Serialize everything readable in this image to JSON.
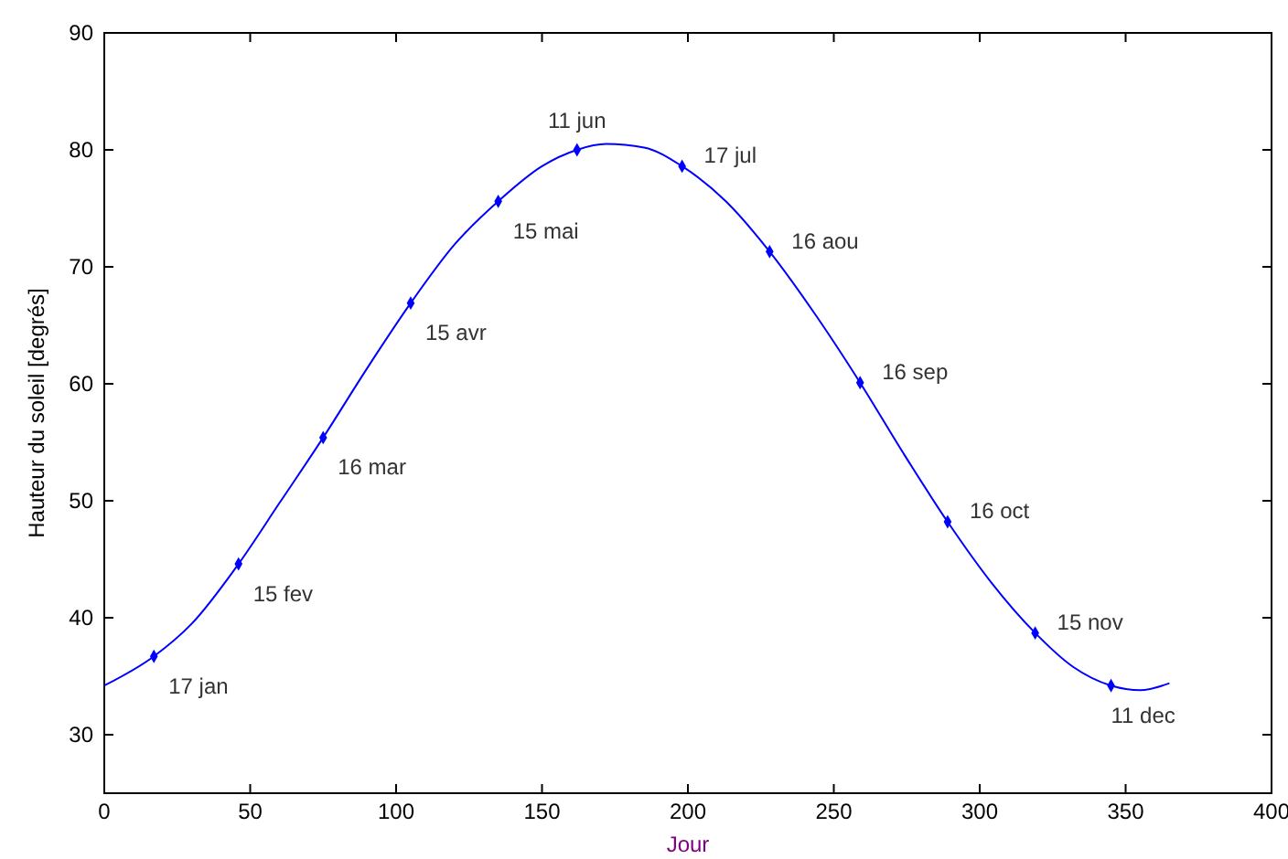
{
  "chart_data": {
    "type": "line",
    "xlabel": "Jour",
    "ylabel": "Hauteur du soleil [degrés]",
    "xlim": [
      0,
      400
    ],
    "ylim": [
      25,
      90
    ],
    "xticks": [
      0,
      50,
      100,
      150,
      200,
      250,
      300,
      350,
      400
    ],
    "yticks": [
      30,
      40,
      50,
      60,
      70,
      80,
      90
    ],
    "grid": false,
    "series": [
      {
        "color": "#0000ff",
        "marker": "none",
        "x": [
          0,
          17,
          30,
          46,
          60,
          75,
          90,
          105,
          120,
          135,
          150,
          162,
          172,
          185,
          198,
          213,
          228,
          244,
          259,
          274,
          289,
          304,
          319,
          332,
          345,
          355,
          365
        ],
        "values": [
          34.2,
          36.7,
          39.5,
          44.6,
          49.8,
          55.4,
          61.3,
          66.9,
          71.9,
          75.6,
          78.6,
          80.0,
          80.5,
          80.2,
          78.6,
          75.6,
          71.3,
          65.8,
          60.1,
          54.0,
          48.2,
          43.0,
          38.7,
          35.8,
          34.2,
          33.8,
          34.4
        ]
      },
      {
        "type": "scatter",
        "color": "#0000ff",
        "marker": "diamond",
        "x": [
          17,
          46,
          75,
          105,
          135,
          162,
          198,
          228,
          259,
          289,
          319,
          345
        ],
        "values": [
          36.7,
          44.6,
          55.4,
          66.9,
          75.6,
          80.0,
          78.6,
          71.3,
          60.1,
          48.2,
          38.7,
          34.2
        ]
      }
    ],
    "annotations": [
      {
        "text": "17 jan",
        "x": 17,
        "y": 36.7
      },
      {
        "text": "15 fev",
        "x": 46,
        "y": 44.6
      },
      {
        "text": "16 mar",
        "x": 75,
        "y": 55.4
      },
      {
        "text": "15 avr",
        "x": 105,
        "y": 66.9
      },
      {
        "text": "15 mai",
        "x": 135,
        "y": 75.6
      },
      {
        "text": "11 jun",
        "x": 162,
        "y": 80.0
      },
      {
        "text": "17 jul",
        "x": 198,
        "y": 78.6
      },
      {
        "text": "16 aou",
        "x": 228,
        "y": 71.3
      },
      {
        "text": "16 sep",
        "x": 259,
        "y": 60.1
      },
      {
        "text": "16 oct",
        "x": 289,
        "y": 48.2
      },
      {
        "text": "15 nov",
        "x": 319,
        "y": 38.7
      },
      {
        "text": "11 dec",
        "x": 345,
        "y": 34.2
      }
    ]
  }
}
